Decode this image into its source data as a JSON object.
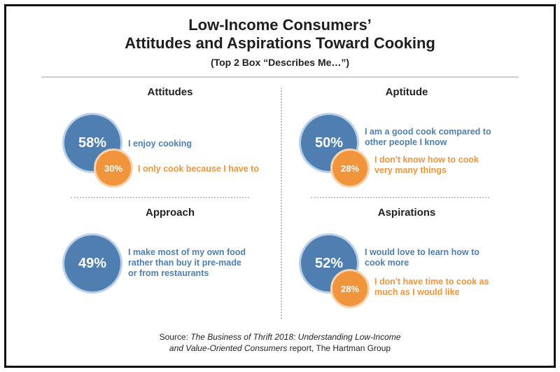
{
  "title_line1": "Low-Income Consumers’",
  "title_line2": "Attitudes and Aspirations Toward Cooking",
  "subtitle": "(Top 2 Box “Describes Me…”)",
  "colors": {
    "primary": "#4f7fb1",
    "secondary": "#f0953c"
  },
  "chart_data": {
    "type": "other",
    "panels": [
      {
        "heading": "Attitudes",
        "items": [
          {
            "value": 58,
            "display": "58%",
            "label": "I enjoy cooking"
          },
          {
            "value": 30,
            "display": "30%",
            "label": "I only cook because I have to"
          }
        ]
      },
      {
        "heading": "Aptitude",
        "items": [
          {
            "value": 50,
            "display": "50%",
            "label": "I am a good cook compared to other people I know"
          },
          {
            "value": 28,
            "display": "28%",
            "label": "I don't know how to cook very many things"
          }
        ]
      },
      {
        "heading": "Approach",
        "items": [
          {
            "value": 49,
            "display": "49%",
            "label": "I make most of my own food rather than buy it pre-made or from restaurants"
          }
        ]
      },
      {
        "heading": "Aspirations",
        "items": [
          {
            "value": 52,
            "display": "52%",
            "label": "I would love to learn how to cook more"
          },
          {
            "value": 28,
            "display": "28%",
            "label": "I don't have time to cook as much as I would like"
          }
        ]
      }
    ]
  },
  "source": {
    "prefix": "Source: ",
    "italic_line1": "The Business of Thrift 2018: Understanding Low-Income",
    "italic_line2": "and Value-Oriented Consumers",
    "suffix": " report, The Hartman Group"
  }
}
